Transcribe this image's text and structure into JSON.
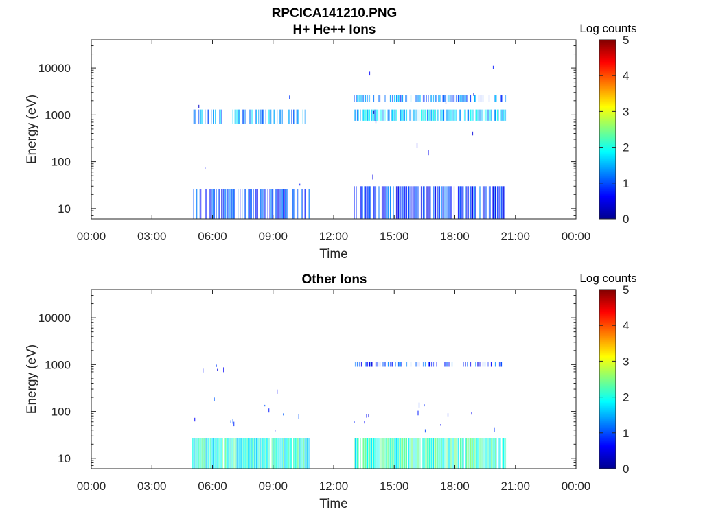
{
  "figure": {
    "title_line1": "RPCICA141210.PNG",
    "title_line2": "H+ He++ Ions"
  },
  "chart_data": [
    {
      "type": "heatmap",
      "title": "H+ He++ Ions",
      "xlabel": "Time",
      "ylabel": "Energy (eV)",
      "yscale": "log",
      "ylim": [
        6,
        40000
      ],
      "xlim_hours": [
        0,
        24
      ],
      "x_ticks": [
        "00:00",
        "03:00",
        "06:00",
        "09:00",
        "12:00",
        "15:00",
        "18:00",
        "21:00",
        "00:00"
      ],
      "y_ticks": [
        "10",
        "100",
        "1000",
        "10000"
      ],
      "colorbar": {
        "label": "Log counts",
        "range": [
          0,
          5
        ],
        "ticks": [
          "0",
          "1",
          "2",
          "3",
          "4",
          "5"
        ],
        "colormap": "jet"
      },
      "data_intervals_hours": [
        [
          5.0,
          10.8
        ],
        [
          13.0,
          20.5
        ]
      ],
      "bands": [
        {
          "interval": 0,
          "emin": 6,
          "emax": 26,
          "log_counts": 0.9,
          "density": 0.65
        },
        {
          "interval": 0,
          "emin": 650,
          "emax": 1300,
          "log_counts": 1.4,
          "density": 0.5
        },
        {
          "interval": 0,
          "emin": 26,
          "emax": 20000,
          "log_counts": 0.6,
          "density": 0.02
        },
        {
          "interval": 1,
          "emin": 6,
          "emax": 30,
          "log_counts": 0.9,
          "density": 0.7
        },
        {
          "interval": 1,
          "emin": 750,
          "emax": 1300,
          "log_counts": 1.6,
          "density": 0.75
        },
        {
          "interval": 1,
          "emin": 1900,
          "emax": 2600,
          "log_counts": 1.2,
          "density": 0.6
        },
        {
          "interval": 1,
          "emin": 30,
          "emax": 20000,
          "log_counts": 0.5,
          "density": 0.04
        }
      ]
    },
    {
      "type": "heatmap",
      "title": "Other Ions",
      "xlabel": "Time",
      "ylabel": "Energy (eV)",
      "yscale": "log",
      "ylim": [
        6,
        40000
      ],
      "xlim_hours": [
        0,
        24
      ],
      "x_ticks": [
        "00:00",
        "03:00",
        "06:00",
        "09:00",
        "12:00",
        "15:00",
        "18:00",
        "21:00",
        "00:00"
      ],
      "y_ticks": [
        "10",
        "100",
        "1000",
        "10000"
      ],
      "colorbar": {
        "label": "Log counts",
        "range": [
          0,
          5
        ],
        "ticks": [
          "0",
          "1",
          "2",
          "3",
          "4",
          "5"
        ],
        "colormap": "jet"
      },
      "data_intervals_hours": [
        [
          5.0,
          10.8
        ],
        [
          13.0,
          20.5
        ]
      ],
      "bands": [
        {
          "interval": 0,
          "emin": 6,
          "emax": 27,
          "log_counts": 2.0,
          "density": 0.95
        },
        {
          "interval": 0,
          "emin": 40,
          "emax": 300,
          "log_counts": 0.8,
          "density": 0.08
        },
        {
          "interval": 0,
          "emin": 800,
          "emax": 1100,
          "log_counts": 0.7,
          "density": 0.05
        },
        {
          "interval": 1,
          "emin": 6,
          "emax": 27,
          "log_counts": 2.1,
          "density": 0.95
        },
        {
          "interval": 1,
          "emin": 40,
          "emax": 200,
          "log_counts": 0.7,
          "density": 0.08
        },
        {
          "interval": 1,
          "emin": 900,
          "emax": 1150,
          "log_counts": 0.9,
          "density": 0.3
        }
      ]
    }
  ]
}
